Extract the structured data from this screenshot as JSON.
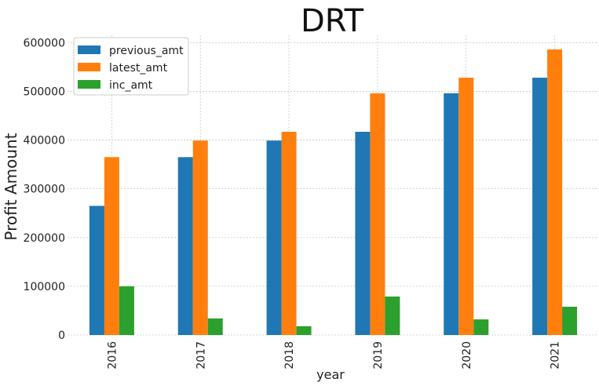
{
  "chart_data": {
    "type": "bar",
    "title": "DRT",
    "xlabel": "year",
    "ylabel": "Profit Amount",
    "categories": [
      "2016",
      "2017",
      "2018",
      "2019",
      "2020",
      "2021"
    ],
    "series": [
      {
        "name": "previous_amt",
        "color": "#1f77b4",
        "values": [
          265000,
          365000,
          399000,
          417000,
          496000,
          528000
        ]
      },
      {
        "name": "latest_amt",
        "color": "#ff7f0e",
        "values": [
          365000,
          399000,
          417000,
          496000,
          528000,
          586000
        ]
      },
      {
        "name": "inc_amt",
        "color": "#2ca02c",
        "values": [
          100000,
          34000,
          18000,
          79000,
          32000,
          58000
        ]
      }
    ],
    "ylim": [
      0,
      615000
    ],
    "yticks": [
      0,
      100000,
      200000,
      300000,
      400000,
      500000,
      600000
    ],
    "grid": true,
    "legend_position": "top-left"
  }
}
